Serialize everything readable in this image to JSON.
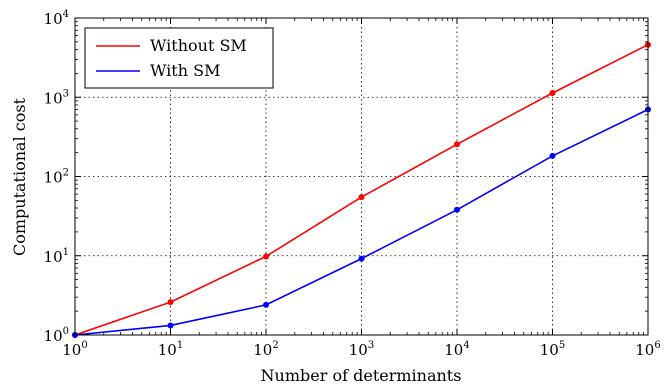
{
  "chart_data": {
    "type": "line",
    "xscale": "log",
    "yscale": "log",
    "xlabel": "Number of determinants",
    "ylabel": "Computational cost",
    "xlim": [
      1,
      1000000
    ],
    "ylim": [
      1,
      10000
    ],
    "x": [
      1,
      10,
      100,
      1000,
      10000,
      100000,
      1000000
    ],
    "grid": true,
    "legend_position": "top-left",
    "xticks": [
      {
        "value": 1,
        "base": "10",
        "exp": "0"
      },
      {
        "value": 10,
        "base": "10",
        "exp": "1"
      },
      {
        "value": 100,
        "base": "10",
        "exp": "2"
      },
      {
        "value": 1000,
        "base": "10",
        "exp": "3"
      },
      {
        "value": 10000,
        "base": "10",
        "exp": "4"
      },
      {
        "value": 100000,
        "base": "10",
        "exp": "5"
      },
      {
        "value": 1000000,
        "base": "10",
        "exp": "6"
      }
    ],
    "yticks": [
      {
        "value": 1,
        "base": "10",
        "exp": "0"
      },
      {
        "value": 10,
        "base": "10",
        "exp": "1"
      },
      {
        "value": 100,
        "base": "10",
        "exp": "2"
      },
      {
        "value": 1000,
        "base": "10",
        "exp": "3"
      },
      {
        "value": 10000,
        "base": "10",
        "exp": "4"
      }
    ],
    "series": [
      {
        "name": "Without SM",
        "color": "#ff0000",
        "values": [
          1,
          2.6,
          9.8,
          55,
          255,
          1130,
          4600
        ]
      },
      {
        "name": "With SM",
        "color": "#0000ff",
        "values": [
          1,
          1.32,
          2.4,
          9.2,
          38,
          182,
          700
        ]
      }
    ]
  }
}
